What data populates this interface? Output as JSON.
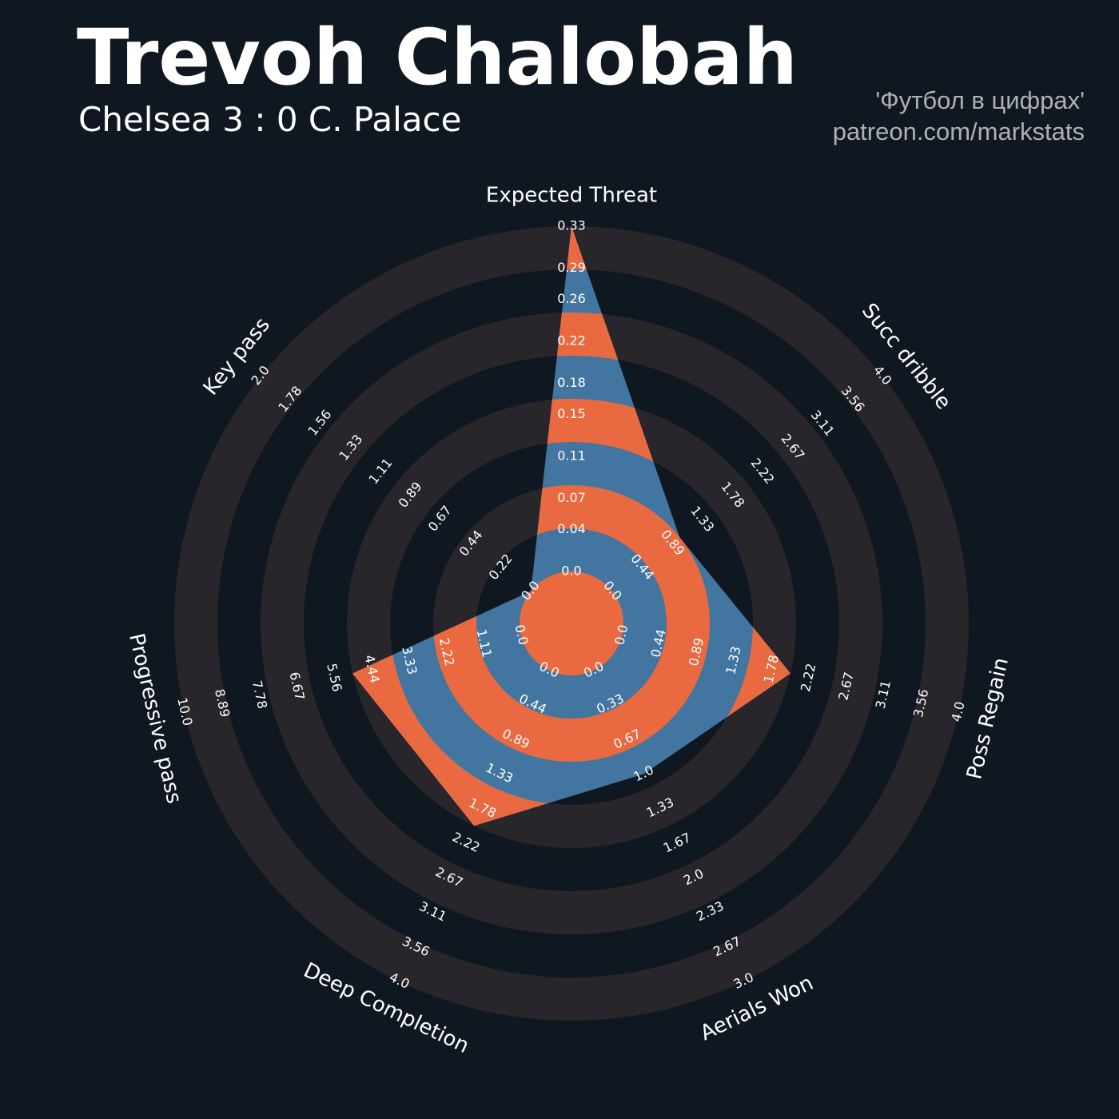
{
  "chart_data": {
    "type": "radar",
    "title": "Trevoh Chalobah",
    "subtitle": "Chelsea 3 : 0 C. Palace",
    "credits": [
      "'Футбол в цифрах'",
      "patreon.com/markstats"
    ],
    "categories": [
      "Expected Threat",
      "Succ dribble",
      "Poss Regain",
      "Aerials Won",
      "Deep Completion",
      "Progressive pass",
      "Key pass"
    ],
    "values": [
      0.33,
      1.0,
      2.0,
      1.0,
      2.0,
      5.0,
      0
    ],
    "color": "#42759f",
    "ring_color": "#e96a40",
    "background_ring_color": "#28252b",
    "axes": [
      {
        "lim": [
          0,
          0.33
        ],
        "ticks": [
          {
            "value": 0,
            "label": "0.0"
          },
          0.04,
          0.07,
          0.11,
          0.15,
          0.18,
          0.22,
          0.26,
          0.29,
          0.33
        ]
      },
      {
        "lim": [
          0,
          4
        ],
        "ticks": [
          {
            "value": 0,
            "label": "0.0"
          },
          0.44,
          0.89,
          1.33,
          1.78,
          2.22,
          2.67,
          3.11,
          3.56,
          {
            "value": 4,
            "label": "4.0"
          }
        ]
      },
      {
        "lim": [
          0,
          4
        ],
        "ticks": [
          {
            "value": 0,
            "label": "0.0"
          },
          0.44,
          0.89,
          1.33,
          1.78,
          2.22,
          2.67,
          3.11,
          3.56,
          {
            "value": 4,
            "label": "4.0"
          }
        ]
      },
      {
        "lim": [
          0,
          3
        ],
        "ticks": [
          {
            "value": 0,
            "label": "0.0"
          },
          0.33,
          0.67,
          {
            "value": 1,
            "label": "1.0"
          },
          1.33,
          1.67,
          {
            "value": 2,
            "label": "2.0"
          },
          2.33,
          2.67,
          {
            "value": 3,
            "label": "3.0"
          }
        ]
      },
      {
        "lim": [
          0,
          4
        ],
        "ticks": [
          {
            "value": 0,
            "label": "0.0"
          },
          0.44,
          0.89,
          1.33,
          1.78,
          2.22,
          2.67,
          3.11,
          3.56,
          {
            "value": 4,
            "label": "4.0"
          }
        ]
      },
      {
        "lim": [
          0,
          10
        ],
        "ticks": [
          {
            "value": 0,
            "label": "0.0"
          },
          1.11,
          2.22,
          3.33,
          4.44,
          5.56,
          6.67,
          7.78,
          8.89,
          {
            "value": 10,
            "label": "10.0"
          }
        ]
      },
      {
        "lim": [
          0,
          2
        ],
        "ticks": [
          {
            "value": 0,
            "label": "0.0"
          },
          0.22,
          0.44,
          0.67,
          0.89,
          1.11,
          1.33,
          1.56,
          1.78,
          {
            "value": 2,
            "label": "2.0"
          }
        ]
      }
    ]
  }
}
